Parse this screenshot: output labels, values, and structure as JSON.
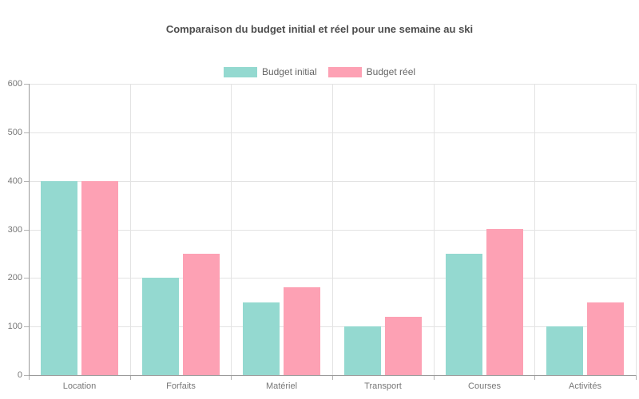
{
  "chart_data": {
    "type": "bar",
    "title": "Comparaison du budget initial et réel pour une semaine au ski",
    "categories": [
      "Location",
      "Forfaits",
      "Matériel",
      "Transport",
      "Courses",
      "Activités"
    ],
    "series": [
      {
        "name": "Budget initial",
        "color": "#94d9d0",
        "values": [
          400,
          200,
          150,
          100,
          250,
          100
        ]
      },
      {
        "name": "Budget réel",
        "color": "#fda1b4",
        "values": [
          400,
          250,
          180,
          120,
          300,
          150
        ]
      }
    ],
    "ylim": [
      0,
      600
    ],
    "ytick_step": 100,
    "ytick_labels": [
      "0",
      "100",
      "200",
      "300",
      "400",
      "500",
      "600"
    ],
    "grid": true,
    "legend_position": "top",
    "colors": {
      "title_text": "#4d4d4d",
      "legend_text": "#666666",
      "axis_label_text": "#777777",
      "axis_line": "#9a9a9a",
      "gridline": "#e3e3e3",
      "tick": "#b3b3b3",
      "background": "#ffffff"
    }
  }
}
